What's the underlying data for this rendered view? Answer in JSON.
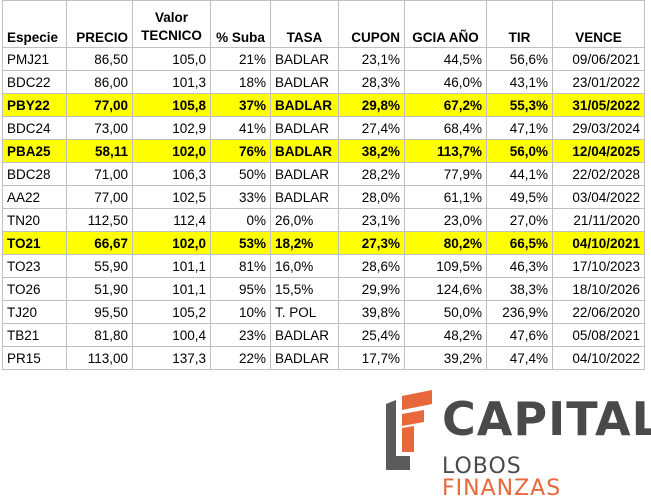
{
  "headers": [
    "Especie",
    "PRECIO",
    "Valor TECNICO",
    "% Suba",
    "TASA",
    "CUPON",
    "GCIA AÑO",
    "TIR",
    "VENCE"
  ],
  "colors": {
    "highlight": "#ffff00",
    "logo_gray": "#4a4a4a",
    "logo_orange": "#e8673b",
    "grid": "#bfbfbf"
  },
  "rows": [
    {
      "highlight": false,
      "cells": [
        "PMJ21",
        "86,50",
        "105,0",
        "21%",
        "BADLAR",
        "23,1%",
        "44,5%",
        "56,6%",
        "09/06/2021"
      ]
    },
    {
      "highlight": false,
      "cells": [
        "BDC22",
        "86,00",
        "101,3",
        "18%",
        "BADLAR",
        "28,3%",
        "46,0%",
        "43,1%",
        "23/01/2022"
      ]
    },
    {
      "highlight": true,
      "cells": [
        "PBY22",
        "77,00",
        "105,8",
        "37%",
        "BADLAR",
        "29,8%",
        "67,2%",
        "55,3%",
        "31/05/2022"
      ]
    },
    {
      "highlight": false,
      "cells": [
        "BDC24",
        "73,00",
        "102,9",
        "41%",
        "BADLAR",
        "27,4%",
        "68,4%",
        "47,1%",
        "29/03/2024"
      ]
    },
    {
      "highlight": true,
      "cells": [
        "PBA25",
        "58,11",
        "102,0",
        "76%",
        "BADLAR",
        "38,2%",
        "113,7%",
        "56,0%",
        "12/04/2025"
      ]
    },
    {
      "highlight": false,
      "cells": [
        "BDC28",
        "71,00",
        "106,3",
        "50%",
        "BADLAR",
        "28,2%",
        "77,9%",
        "44,1%",
        "22/02/2028"
      ]
    },
    {
      "highlight": false,
      "cells": [
        "AA22",
        "77,00",
        "102,5",
        "33%",
        "BADLAR",
        "28,0%",
        "61,1%",
        "49,5%",
        "03/04/2022"
      ]
    },
    {
      "highlight": false,
      "cells": [
        "TN20",
        "112,50",
        "112,4",
        "0%",
        "26,0%",
        "23,1%",
        "23,0%",
        "27,0%",
        "21/11/2020"
      ]
    },
    {
      "highlight": true,
      "cells": [
        "TO21",
        "66,67",
        "102,0",
        "53%",
        "18,2%",
        "27,3%",
        "80,2%",
        "66,5%",
        "04/10/2021"
      ]
    },
    {
      "highlight": false,
      "cells": [
        "TO23",
        "55,90",
        "101,1",
        "81%",
        "16,0%",
        "28,6%",
        "109,5%",
        "46,3%",
        "17/10/2023"
      ]
    },
    {
      "highlight": false,
      "cells": [
        "TO26",
        "51,90",
        "101,1",
        "95%",
        "15,5%",
        "29,9%",
        "124,6%",
        "38,3%",
        "18/10/2026"
      ]
    },
    {
      "highlight": false,
      "cells": [
        "TJ20",
        "95,50",
        "105,2",
        "10%",
        "T. POL",
        "39,8%",
        "50,0%",
        "236,9%",
        "22/06/2020"
      ]
    },
    {
      "highlight": false,
      "cells": [
        "TB21",
        "81,80",
        "100,4",
        "23%",
        "BADLAR",
        "25,4%",
        "48,2%",
        "47,6%",
        "05/08/2021"
      ]
    },
    {
      "highlight": false,
      "cells": [
        "PR15",
        "113,00",
        "137,3",
        "22%",
        "BADLAR",
        "17,7%",
        "39,2%",
        "47,4%",
        "04/10/2022"
      ]
    }
  ],
  "logo": {
    "brand": "CAPITAL",
    "sub_main": "LOBOS ",
    "sub_accent": "FINANZAS",
    "mark_icon": "lf-logo-mark-icon"
  }
}
